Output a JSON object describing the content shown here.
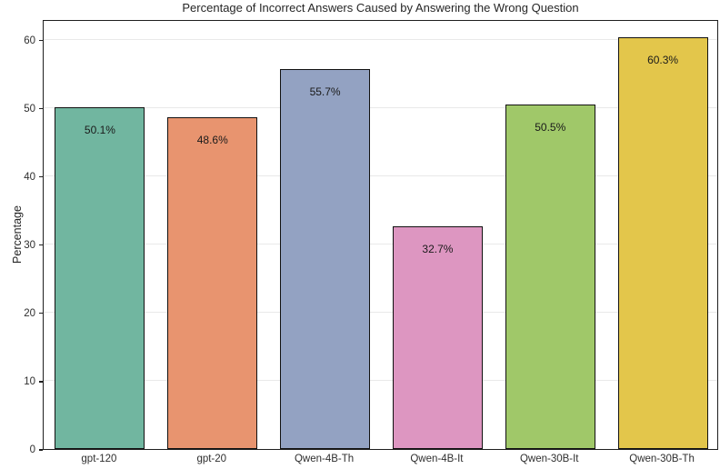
{
  "chart_data": {
    "type": "bar",
    "title": "Percentage of Incorrect Answers Caused by Answering the Wrong Question",
    "xlabel": "",
    "ylabel": "Percentage",
    "categories": [
      "gpt-120",
      "gpt-20",
      "Qwen-4B-Th",
      "Qwen-4B-It",
      "Qwen-30B-It",
      "Qwen-30B-Th"
    ],
    "values": [
      50.1,
      48.6,
      55.7,
      32.7,
      50.5,
      60.3
    ],
    "value_labels": [
      "50.1%",
      "48.6%",
      "55.7%",
      "32.7%",
      "50.5%",
      "60.3%"
    ],
    "bar_colors": [
      "#71b6a0",
      "#e8946f",
      "#93a2c2",
      "#dd96c1",
      "#a0c869",
      "#e3c64b"
    ],
    "bar_edge_color": "#111111",
    "ylim": [
      0,
      63
    ],
    "yticks": [
      0,
      10,
      20,
      30,
      40,
      50,
      60
    ],
    "ytick_labels": [
      "0",
      "10",
      "20",
      "30",
      "40",
      "50",
      "60"
    ],
    "grid": "horizontal",
    "grid_color": "#e9e9e9",
    "legend": "none",
    "background": "#ffffff"
  }
}
